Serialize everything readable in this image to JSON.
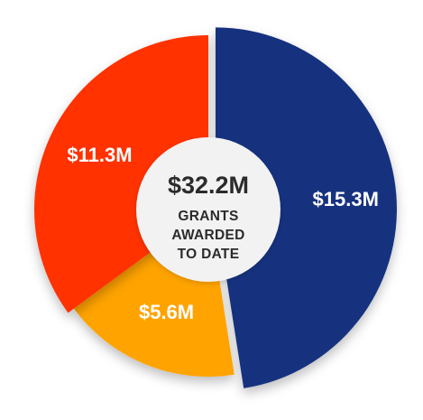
{
  "chart_data": {
    "type": "pie",
    "center_total": "$32.2M",
    "center_caption": [
      "GRANTS",
      "AWARDED",
      "TO DATE"
    ],
    "slices": [
      {
        "label": "$15.3M",
        "value": 15.3,
        "color": "#12307f"
      },
      {
        "label": "$5.6M",
        "value": 5.6,
        "color": "#ffa300"
      },
      {
        "label": "$11.3M",
        "value": 11.3,
        "color": "#ff3200"
      }
    ],
    "donut": true,
    "center_circle_color": "#f2f2f2"
  }
}
